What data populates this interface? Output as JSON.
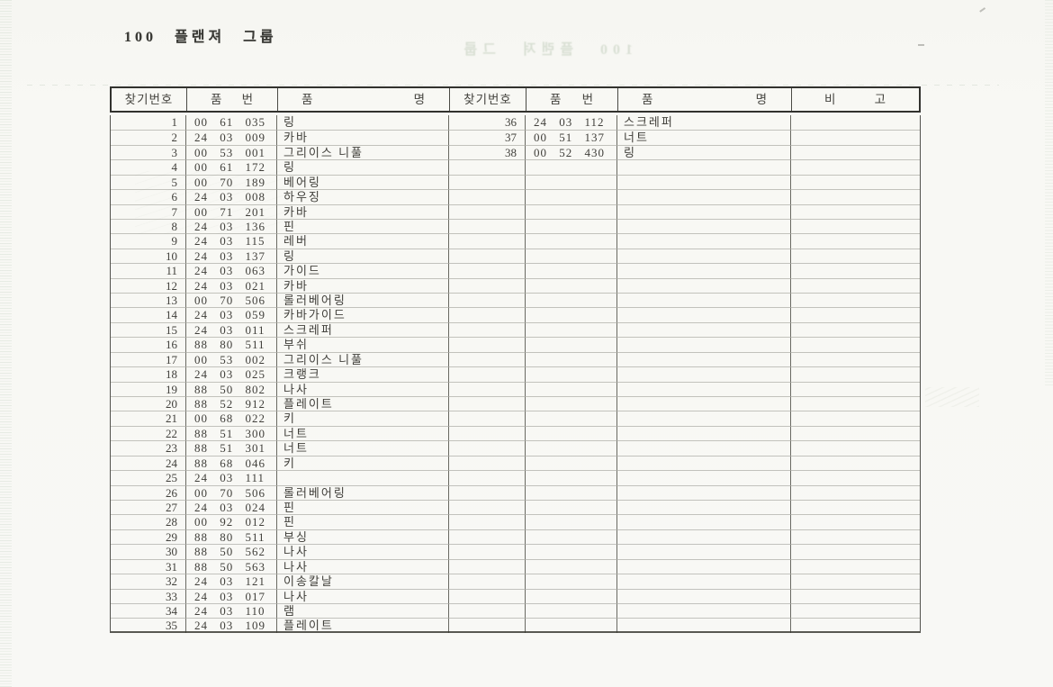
{
  "page": {
    "title": "100  플랜져  그룹",
    "ghost_title": "100  플랜져  그룹"
  },
  "table": {
    "headers": {
      "find_no": "찾기번호",
      "part_no": "품 번",
      "part_name": "품 명",
      "remarks": "비 고"
    },
    "left_rows": [
      {
        "no": "1",
        "part_no": "00 61 035",
        "name": "링"
      },
      {
        "no": "2",
        "part_no": "24 03 009",
        "name": "카바"
      },
      {
        "no": "3",
        "part_no": "00 53 001",
        "name": "그리이스 니풀"
      },
      {
        "no": "4",
        "part_no": "00 61 172",
        "name": "링"
      },
      {
        "no": "5",
        "part_no": "00 70 189",
        "name": "베어링"
      },
      {
        "no": "6",
        "part_no": "24 03 008",
        "name": "하우징"
      },
      {
        "no": "7",
        "part_no": "00 71 201",
        "name": "카바"
      },
      {
        "no": "8",
        "part_no": "24 03 136",
        "name": "핀"
      },
      {
        "no": "9",
        "part_no": "24 03 115",
        "name": "레버"
      },
      {
        "no": "10",
        "part_no": "24 03 137",
        "name": "링"
      },
      {
        "no": "11",
        "part_no": "24 03 063",
        "name": "가이드"
      },
      {
        "no": "12",
        "part_no": "24 03 021",
        "name": "카바"
      },
      {
        "no": "13",
        "part_no": "00 70 506",
        "name": "롤러베어링"
      },
      {
        "no": "14",
        "part_no": "24 03 059",
        "name": "카바가이드"
      },
      {
        "no": "15",
        "part_no": "24 03 011",
        "name": "스크레퍼"
      },
      {
        "no": "16",
        "part_no": "88 80 511",
        "name": "부쉬"
      },
      {
        "no": "17",
        "part_no": "00 53 002",
        "name": "그리이스 니풀"
      },
      {
        "no": "18",
        "part_no": "24 03 025",
        "name": "크랭크"
      },
      {
        "no": "19",
        "part_no": "88 50 802",
        "name": "나사"
      },
      {
        "no": "20",
        "part_no": "88 52 912",
        "name": "플레이트"
      },
      {
        "no": "21",
        "part_no": "00 68 022",
        "name": "키"
      },
      {
        "no": "22",
        "part_no": "88 51 300",
        "name": "너트"
      },
      {
        "no": "23",
        "part_no": "88 51 301",
        "name": "너트"
      },
      {
        "no": "24",
        "part_no": "88 68 046",
        "name": "키"
      },
      {
        "no": "25",
        "part_no": "24 03 111",
        "name": ""
      },
      {
        "no": "26",
        "part_no": "00 70 506",
        "name": "롤러베어링"
      },
      {
        "no": "27",
        "part_no": "24 03 024",
        "name": "핀"
      },
      {
        "no": "28",
        "part_no": "00 92 012",
        "name": "핀"
      },
      {
        "no": "29",
        "part_no": "88 80 511",
        "name": "부싱"
      },
      {
        "no": "30",
        "part_no": "88 50 562",
        "name": "나사"
      },
      {
        "no": "31",
        "part_no": "88 50 563",
        "name": "나사"
      },
      {
        "no": "32",
        "part_no": "24 03 121",
        "name": "이송칼날"
      },
      {
        "no": "33",
        "part_no": "24 03 017",
        "name": "나사"
      },
      {
        "no": "34",
        "part_no": "24 03 110",
        "name": "램"
      },
      {
        "no": "35",
        "part_no": "24 03 109",
        "name": "플레이트"
      }
    ],
    "right_rows": [
      {
        "no": "36",
        "part_no": "24 03 112",
        "name": "스크레퍼"
      },
      {
        "no": "37",
        "part_no": "00 51 137",
        "name": "너트"
      },
      {
        "no": "38",
        "part_no": "00 52 430",
        "name": "링"
      }
    ],
    "total_body_rows": 35
  }
}
